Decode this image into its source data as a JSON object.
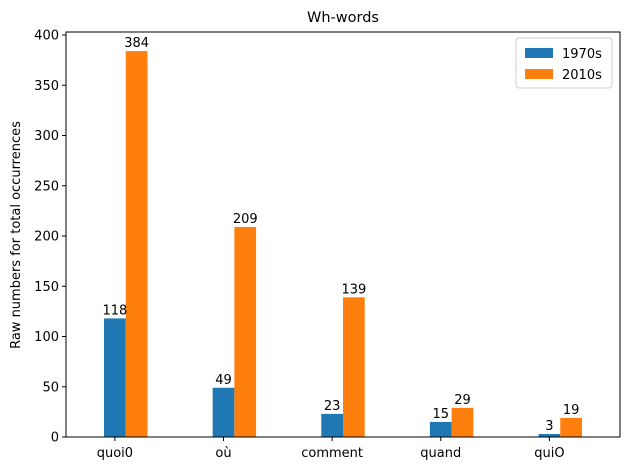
{
  "chart_data": {
    "type": "bar",
    "title": "Wh-words",
    "xlabel": "",
    "ylabel": "Raw numbers for total occurrences",
    "categories": [
      "quoi0",
      "où",
      "comment",
      "quand",
      "quiO"
    ],
    "series": [
      {
        "name": "1970s",
        "values": [
          118,
          49,
          23,
          15,
          3
        ],
        "color": "#1f77b4"
      },
      {
        "name": "2010s",
        "values": [
          384,
          209,
          139,
          29,
          19
        ],
        "color": "#ff7f0e"
      }
    ],
    "ylim": [
      0,
      403
    ],
    "yticks": [
      0,
      50,
      100,
      150,
      200,
      250,
      300,
      350,
      400
    ],
    "grid": false,
    "legend_position": "top-right"
  }
}
